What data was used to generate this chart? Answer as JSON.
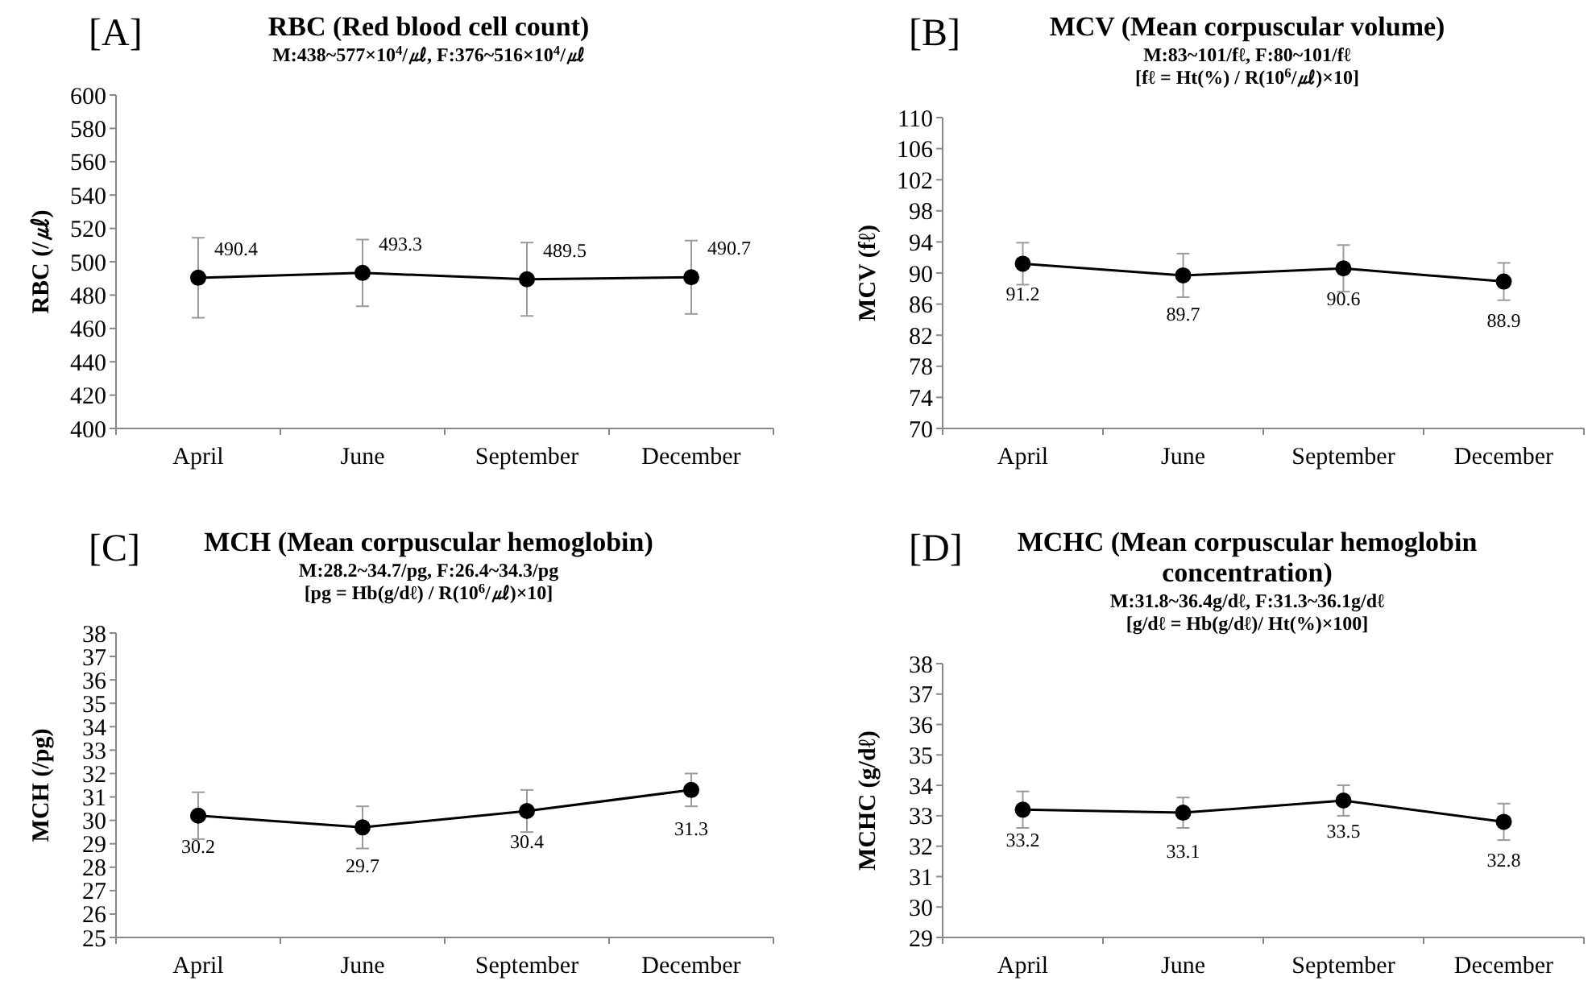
{
  "chart_data": [
    {
      "type": "line",
      "title": "RBC (Red blood cell count)",
      "subtitle": "M:438~577×10$^{4}$/㎕, F:376~516×10$^{4}$/㎕",
      "ylabel": "RBC (/㎕)",
      "annotations": [
        "[A]"
      ],
      "categories": [
        "April",
        "June",
        "September",
        "December"
      ],
      "values": [
        490.4,
        493.3,
        489.5,
        490.7
      ],
      "errors": [
        24,
        20,
        22,
        22
      ],
      "color": "#000000",
      "data_labels": true,
      "marker": "circle",
      "line_style": "solid",
      "ylim": [
        400,
        600
      ],
      "yticks": [
        400,
        420,
        440,
        460,
        480,
        500,
        520,
        540,
        560,
        580,
        600
      ]
    },
    {
      "type": "line",
      "title": "MCV (Mean corpuscular volume)",
      "subtitle": "M:83~101/fℓ, F:80~101/fℓ\n[fℓ = Ht(%) / R(10$^{6}$/㎕)×10]",
      "ylabel": "MCV (fℓ)",
      "annotations": [
        "[B]"
      ],
      "categories": [
        "April",
        "June",
        "September",
        "December"
      ],
      "values": [
        91.2,
        89.7,
        90.6,
        88.9
      ],
      "errors": [
        2.7,
        2.8,
        3,
        2.4
      ],
      "color": "#000000",
      "data_labels": true,
      "marker": "circle",
      "line_style": "solid",
      "ylim": [
        70,
        110
      ],
      "yticks": [
        70,
        74,
        78,
        82,
        86,
        90,
        94,
        98,
        102,
        106,
        110
      ]
    },
    {
      "type": "line",
      "title": "MCH (Mean corpuscular hemoglobin)",
      "subtitle": "M:28.2~34.7/pg, F:26.4~34.3/pg\n[pg = Hb(g/dℓ) / R(10$^{6}$/㎕)×10]",
      "ylabel": "MCH (/pg)",
      "annotations": [
        "[C]"
      ],
      "categories": [
        "April",
        "June",
        "September",
        "December"
      ],
      "values": [
        30.2,
        29.7,
        30.4,
        31.3
      ],
      "errors": [
        1,
        0.9,
        0.9,
        0.7
      ],
      "color": "#000000",
      "data_labels": true,
      "marker": "circle",
      "line_style": "solid",
      "ylim": [
        25,
        38
      ],
      "yticks": [
        25,
        26,
        27,
        28,
        29,
        30,
        31,
        32,
        33,
        34,
        35,
        36,
        37,
        38
      ]
    },
    {
      "type": "line",
      "title": "MCHC (Mean corpuscular hemoglobin concentration)",
      "subtitle": "M:31.8~36.4g/dℓ, F:31.3~36.1g/dℓ\n[g/dℓ = Hb(g/dℓ)/ Ht(%)×100]",
      "ylabel": "MCHC (g/dℓ)",
      "annotations": [
        "[D]"
      ],
      "categories": [
        "April",
        "June",
        "September",
        "December"
      ],
      "values": [
        33.2,
        33.1,
        33.5,
        32.8
      ],
      "errors": [
        0.6,
        0.5,
        0.5,
        0.6
      ],
      "color": "#000000",
      "data_labels": true,
      "marker": "circle",
      "line_style": "solid",
      "ylim": [
        29,
        38
      ],
      "yticks": [
        29,
        30,
        31,
        32,
        33,
        34,
        35,
        36,
        37,
        38
      ]
    }
  ]
}
